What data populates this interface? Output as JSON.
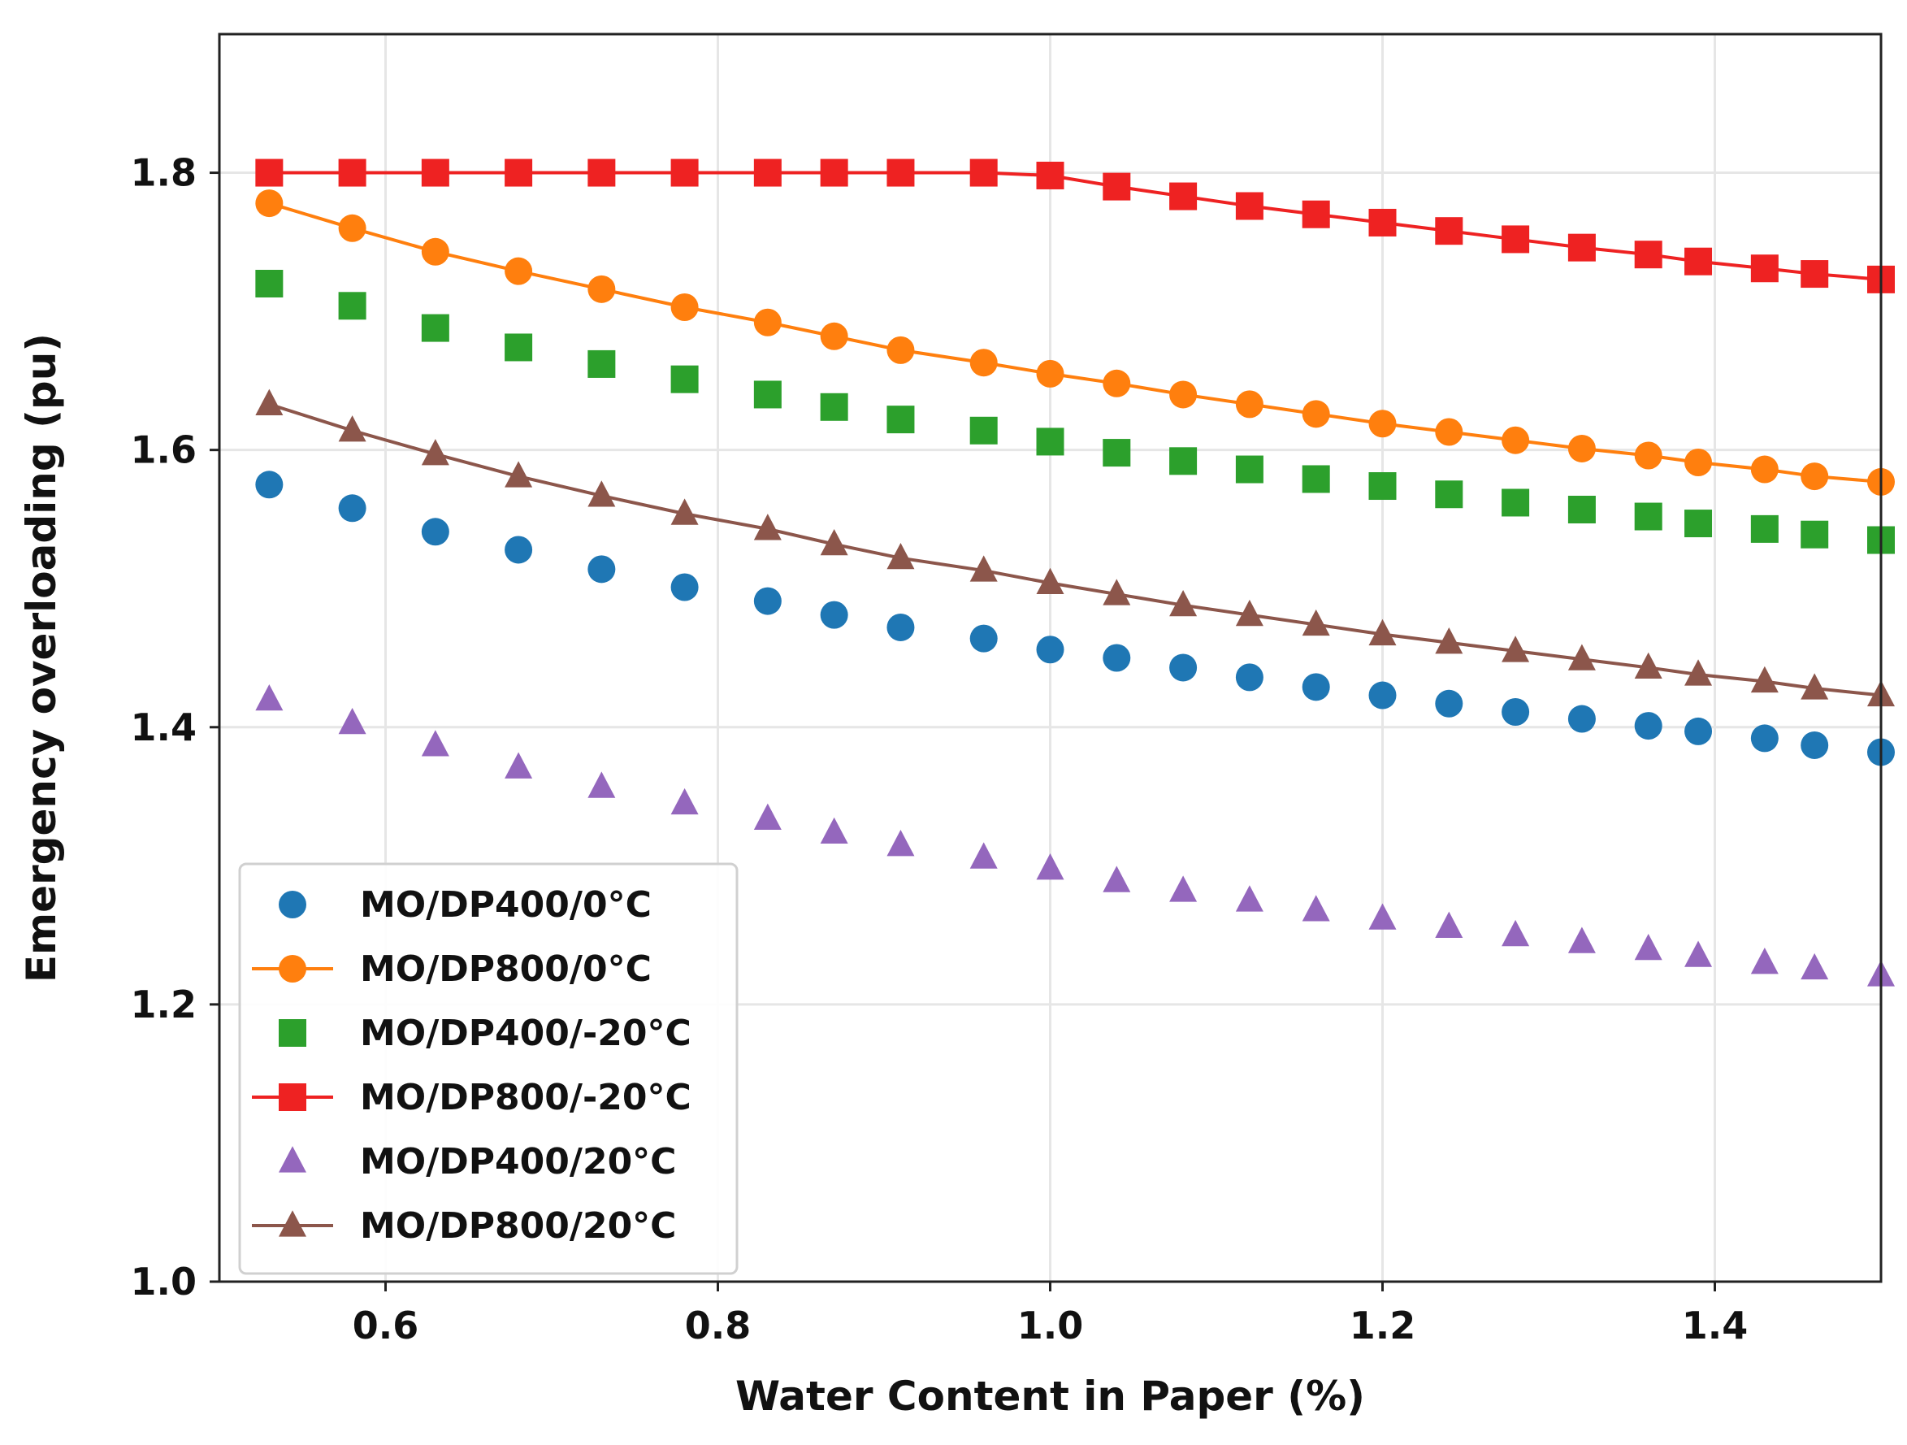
{
  "chart_data": {
    "type": "line",
    "title": "",
    "xlabel": "Water Content in Paper (%)",
    "ylabel": "Emergency overloading (pu)",
    "xlim": [
      0.5,
      1.5
    ],
    "ylim": [
      1.0,
      1.9
    ],
    "xticks": [
      0.6,
      0.8,
      1.0,
      1.2,
      1.4
    ],
    "xtick_labels": [
      "0.6",
      "0.8",
      "1.0",
      "1.2",
      "1.4"
    ],
    "yticks": [
      1.0,
      1.2,
      1.4,
      1.6,
      1.8
    ],
    "ytick_labels": [
      "1.0",
      "1.2",
      "1.4",
      "1.6",
      "1.8"
    ],
    "grid": true,
    "legend_position": "lower-left",
    "x": [
      0.53,
      0.58,
      0.63,
      0.68,
      0.73,
      0.78,
      0.83,
      0.87,
      0.91,
      0.96,
      1.0,
      1.04,
      1.08,
      1.12,
      1.16,
      1.2,
      1.24,
      1.28,
      1.32,
      1.36,
      1.39,
      1.43,
      1.46,
      1.5
    ],
    "series": [
      {
        "name": "MO/DP400/0°C",
        "color": "#1f77b4",
        "marker": "circle",
        "line": false,
        "values": [
          1.575,
          1.558,
          1.541,
          1.528,
          1.514,
          1.501,
          1.491,
          1.481,
          1.472,
          1.464,
          1.456,
          1.45,
          1.443,
          1.436,
          1.429,
          1.423,
          1.417,
          1.411,
          1.406,
          1.401,
          1.397,
          1.392,
          1.387,
          1.382
        ]
      },
      {
        "name": "MO/DP800/0°C",
        "color": "#ff7f0e",
        "marker": "circle",
        "line": true,
        "values": [
          1.778,
          1.76,
          1.743,
          1.729,
          1.716,
          1.703,
          1.692,
          1.682,
          1.672,
          1.663,
          1.655,
          1.648,
          1.64,
          1.633,
          1.626,
          1.619,
          1.613,
          1.607,
          1.601,
          1.596,
          1.591,
          1.586,
          1.581,
          1.577
        ]
      },
      {
        "name": "MO/DP400/-20°C",
        "color": "#2ca02c",
        "marker": "square",
        "line": false,
        "values": [
          1.72,
          1.704,
          1.688,
          1.674,
          1.662,
          1.651,
          1.64,
          1.631,
          1.622,
          1.614,
          1.606,
          1.598,
          1.592,
          1.586,
          1.579,
          1.574,
          1.568,
          1.562,
          1.557,
          1.552,
          1.547,
          1.543,
          1.539,
          1.535
        ]
      },
      {
        "name": "MO/DP800/-20°C",
        "color": "#ee2222",
        "marker": "square",
        "line": true,
        "values": [
          1.8,
          1.8,
          1.8,
          1.8,
          1.8,
          1.8,
          1.8,
          1.8,
          1.8,
          1.8,
          1.798,
          1.79,
          1.783,
          1.776,
          1.77,
          1.764,
          1.758,
          1.752,
          1.746,
          1.741,
          1.736,
          1.731,
          1.727,
          1.723
        ]
      },
      {
        "name": "MO/DP400/20°C",
        "color": "#9467bd",
        "marker": "triangle",
        "line": false,
        "values": [
          1.42,
          1.403,
          1.387,
          1.371,
          1.357,
          1.345,
          1.334,
          1.324,
          1.315,
          1.306,
          1.298,
          1.289,
          1.282,
          1.275,
          1.268,
          1.262,
          1.256,
          1.25,
          1.245,
          1.24,
          1.235,
          1.23,
          1.226,
          1.221
        ]
      },
      {
        "name": "MO/DP800/20°C",
        "color": "#8c564b",
        "marker": "triangle",
        "line": true,
        "values": [
          1.633,
          1.614,
          1.597,
          1.581,
          1.567,
          1.554,
          1.543,
          1.532,
          1.522,
          1.513,
          1.504,
          1.496,
          1.488,
          1.481,
          1.474,
          1.467,
          1.461,
          1.455,
          1.449,
          1.443,
          1.438,
          1.433,
          1.428,
          1.423
        ]
      }
    ]
  }
}
